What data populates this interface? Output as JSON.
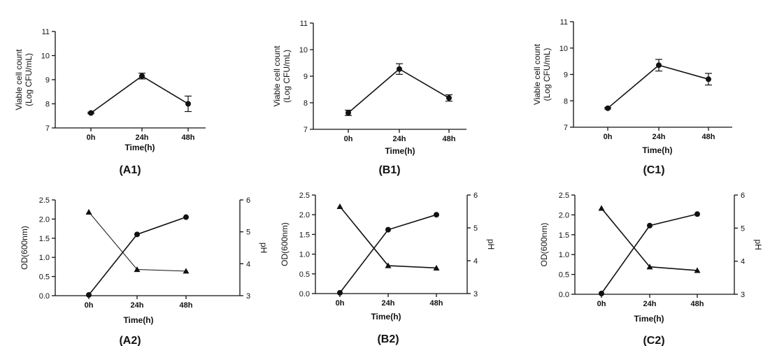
{
  "chart_data": [
    {
      "id": "A1",
      "type": "line",
      "panel_label": "(A1)",
      "categories": [
        "0h",
        "24h",
        "48h"
      ],
      "xlabel": "Time(h)",
      "ylabel": "Viable cell count",
      "ylabel2": "(Log CFU/mL)",
      "ylim": [
        7,
        11
      ],
      "yticks": [
        7,
        8,
        9,
        10,
        11
      ],
      "grid": false,
      "series": [
        {
          "values": [
            7.62,
            9.15,
            8.0
          ],
          "errors": [
            0.03,
            0.12,
            0.32
          ],
          "marker": "circle"
        }
      ]
    },
    {
      "id": "B1",
      "type": "line",
      "panel_label": "(B1)",
      "categories": [
        "0h",
        "24h",
        "48h"
      ],
      "xlabel": "Time(h)",
      "ylabel": "Viable cell count",
      "ylabel2": "(Log CFU/mL)",
      "ylim": [
        7,
        11
      ],
      "yticks": [
        7,
        8,
        9,
        10,
        11
      ],
      "grid": false,
      "series": [
        {
          "values": [
            7.62,
            9.27,
            8.18
          ],
          "errors": [
            0.1,
            0.2,
            0.12
          ],
          "marker": "circle"
        }
      ]
    },
    {
      "id": "C1",
      "type": "line",
      "panel_label": "(C1)",
      "categories": [
        "0h",
        "24h",
        "48h"
      ],
      "xlabel": "Time(h)",
      "ylabel": "Viable cell count",
      "ylabel2": "(Log CFU/mL)",
      "ylim": [
        7,
        11
      ],
      "yticks": [
        7,
        8,
        9,
        10,
        11
      ],
      "grid": false,
      "series": [
        {
          "values": [
            7.72,
            9.35,
            8.82
          ],
          "errors": [
            0.03,
            0.22,
            0.22
          ],
          "marker": "circle"
        }
      ]
    },
    {
      "id": "A2",
      "type": "line",
      "panel_label": "(A2)",
      "categories": [
        "0h",
        "24h",
        "48h"
      ],
      "xlabel": "Time(h)",
      "ylabel": "OD(600nm)",
      "ylabel_right": "pH",
      "ylim": [
        0,
        2.5
      ],
      "yticks": [
        "0.0",
        "0.5",
        "1.0",
        "1.5",
        "2.0",
        "2.5"
      ],
      "ylim_right": [
        3,
        6
      ],
      "yticks_right": [
        3,
        4,
        5,
        6
      ],
      "grid": false,
      "series": [
        {
          "axis": "left",
          "values": [
            0.02,
            1.6,
            2.05
          ],
          "marker": "circle"
        },
        {
          "axis": "right",
          "values": [
            5.62,
            3.82,
            3.77
          ],
          "marker": "triangle"
        }
      ]
    },
    {
      "id": "B2",
      "type": "line",
      "panel_label": "(B2)",
      "categories": [
        "0h",
        "24h",
        "48h"
      ],
      "xlabel": "Time(h)",
      "ylabel": "OD(600nm)",
      "ylabel_right": "pH",
      "ylim": [
        0,
        2.5
      ],
      "yticks": [
        "0.0",
        "0.5",
        "1.0",
        "1.5",
        "2.0",
        "2.5"
      ],
      "ylim_right": [
        3,
        6
      ],
      "yticks_right": [
        3,
        4,
        5,
        6
      ],
      "grid": false,
      "series": [
        {
          "axis": "left",
          "values": [
            0.02,
            1.62,
            2.0
          ],
          "marker": "circle"
        },
        {
          "axis": "right",
          "values": [
            5.65,
            3.85,
            3.78
          ],
          "marker": "triangle"
        }
      ]
    },
    {
      "id": "C2",
      "type": "line",
      "panel_label": "(C2)",
      "categories": [
        "0h",
        "24h",
        "48h"
      ],
      "xlabel": "Time(h)",
      "ylabel": "OD(600nm)",
      "ylabel_right": "pH",
      "ylim": [
        0,
        2.5
      ],
      "yticks": [
        "0.0",
        "0.5",
        "1.0",
        "1.5",
        "2.0",
        "2.5"
      ],
      "ylim_right": [
        3,
        6
      ],
      "yticks_right": [
        3,
        4,
        5,
        6
      ],
      "grid": false,
      "series": [
        {
          "axis": "left",
          "values": [
            0.02,
            1.73,
            2.02
          ],
          "marker": "circle"
        },
        {
          "axis": "right",
          "values": [
            5.6,
            3.83,
            3.72
          ],
          "marker": "triangle"
        }
      ]
    }
  ]
}
